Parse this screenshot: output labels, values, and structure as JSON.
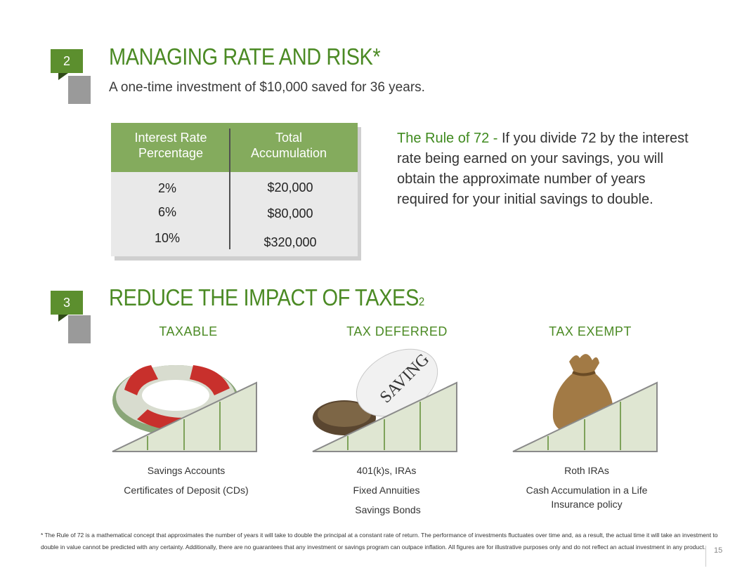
{
  "section2": {
    "number": "2",
    "title": "MANAGING RATE AND RISK*",
    "subtitle": "A one-time investment of $10,000 saved for 36 years."
  },
  "rate_table": {
    "header_rate": "Interest Rate Percentage",
    "header_total": "Total Accumulation",
    "rows": [
      {
        "rate": "2%",
        "total": "$20,000"
      },
      {
        "rate": "6%",
        "total": "$80,000"
      },
      {
        "rate": "10%",
        "total": "$320,000"
      }
    ]
  },
  "rule72": {
    "label": "The Rule of 72 -",
    "text": " If you divide 72 by the interest rate being earned on your savings, you will obtain the approximate number of years required for your initial savings to double."
  },
  "section3": {
    "number": "3",
    "title": "REDUCE THE IMPACT OF TAXES",
    "superscript": "2"
  },
  "tax_columns": [
    {
      "heading": "TAXABLE",
      "icon": "life-ring-money-icon",
      "items": [
        "Savings Accounts",
        "Certificates of Deposit (CDs)"
      ]
    },
    {
      "heading": "TAX DEFERRED",
      "icon": "savings-nest-egg-icon",
      "items": [
        "401(k)s, IRAs",
        "Fixed Annuities",
        "Savings Bonds"
      ]
    },
    {
      "heading": "TAX EXEMPT",
      "icon": "money-bag-icon",
      "items": [
        "Roth IRAs",
        "Cash Accumulation in a Life Insurance policy"
      ]
    }
  ],
  "footnote": "* The Rule of 72 is a mathematical concept that approximates the number of years it will take to double the principal at a constant rate of return.  The performance of investments fluctuates over time and, as a result, the actual time it will take an investment to double in value cannot be predicted with any certainty. Additionally, there are no guarantees that any investment or savings program can outpace inflation. All figures are for illustrative purposes only and do not reflect an actual investment in any product.",
  "page_number": "15",
  "colors": {
    "accent_green": "#4b8a24",
    "table_header": "#84ab5d",
    "badge_gray": "#9a9a9a"
  }
}
